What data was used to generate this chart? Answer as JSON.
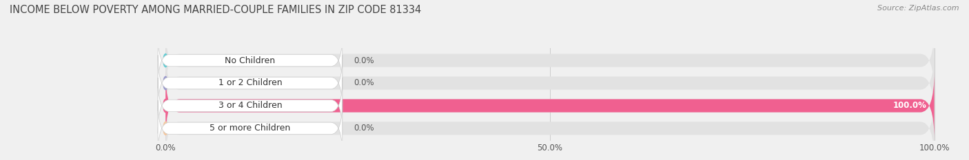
{
  "title": "INCOME BELOW POVERTY AMONG MARRIED-COUPLE FAMILIES IN ZIP CODE 81334",
  "source": "Source: ZipAtlas.com",
  "categories": [
    "No Children",
    "1 or 2 Children",
    "3 or 4 Children",
    "5 or more Children"
  ],
  "values": [
    0.0,
    0.0,
    100.0,
    0.0
  ],
  "bar_colors": [
    "#62cdd4",
    "#9999cc",
    "#f06090",
    "#f5c8a0"
  ],
  "background_color": "#f0f0f0",
  "bar_background": "#e2e2e2",
  "xlim": [
    0,
    100
  ],
  "xticks": [
    0.0,
    50.0,
    100.0
  ],
  "xtick_labels": [
    "0.0%",
    "50.0%",
    "100.0%"
  ],
  "title_fontsize": 10.5,
  "source_fontsize": 8,
  "label_fontsize": 9,
  "tick_fontsize": 8.5,
  "value_fontsize": 8.5
}
